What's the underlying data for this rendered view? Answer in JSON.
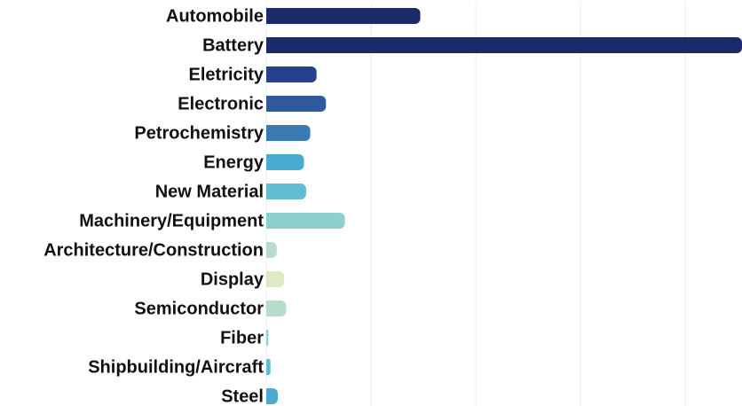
{
  "chart_data": {
    "type": "hbar",
    "categories": [
      "Automobile",
      "Battery",
      "Eletricity",
      "Electronic",
      "Petrochemistry",
      "Energy",
      "New Material",
      "Machinery/Equipment",
      "Architecture/Construction",
      "Display",
      "Semiconductor",
      "Fiber",
      "Shipbuilding/Aircraft",
      "Steel"
    ],
    "values": [
      147,
      454,
      48,
      57,
      42,
      36,
      38,
      75,
      10,
      17,
      19,
      2,
      4,
      11
    ],
    "colors": [
      "#1b2a6b",
      "#1b2a6b",
      "#24418b",
      "#2f5b9c",
      "#3b79b2",
      "#4aaacf",
      "#62bdd2",
      "#8dcfcb",
      "#b8dccb",
      "#dcebc6",
      "#b7dccb",
      "#8dcfdc",
      "#62bad6",
      "#4aaacf"
    ],
    "xlim": [
      0,
      454
    ],
    "xticks": [
      0,
      100,
      200,
      300,
      400
    ],
    "grid": true
  }
}
